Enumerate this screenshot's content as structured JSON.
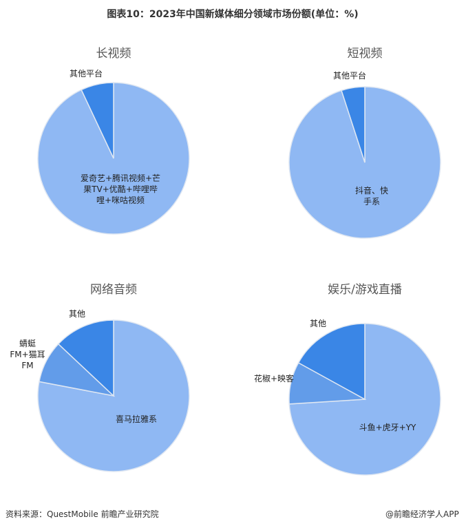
{
  "title": "图表10：2023年中国新媒体细分领域市场份额(单位：%)",
  "chart_data": [
    {
      "type": "pie",
      "title": "长视频",
      "categories": [
        "爱奇艺+腾讯视频+芒果TV+优酷+哔哩哔哩+咪咕视频",
        "其他平台"
      ],
      "values": [
        93,
        7
      ],
      "colors": [
        "#8fb8f3",
        "#3a86e6"
      ]
    },
    {
      "type": "pie",
      "title": "短视频",
      "categories": [
        "抖音、快手系",
        "其他平台"
      ],
      "values": [
        95,
        5
      ],
      "colors": [
        "#8fb8f3",
        "#3a86e6"
      ]
    },
    {
      "type": "pie",
      "title": "网络音频",
      "categories": [
        "喜马拉雅系",
        "蜻蜓FM+猫耳FM",
        "其他"
      ],
      "values": [
        78,
        9,
        13
      ],
      "colors": [
        "#8fb8f3",
        "#629ce9",
        "#3a86e6"
      ]
    },
    {
      "type": "pie",
      "title": "娱乐/游戏直播",
      "categories": [
        "斗鱼+虎牙+YY",
        "花椒+映客",
        "其他"
      ],
      "values": [
        74,
        9,
        17
      ],
      "colors": [
        "#8fb8f3",
        "#629ce9",
        "#3a86e6"
      ]
    }
  ],
  "source": "资料来源：QuestMobile 前瞻产业研究院",
  "brand": "@前瞻经济学人APP"
}
